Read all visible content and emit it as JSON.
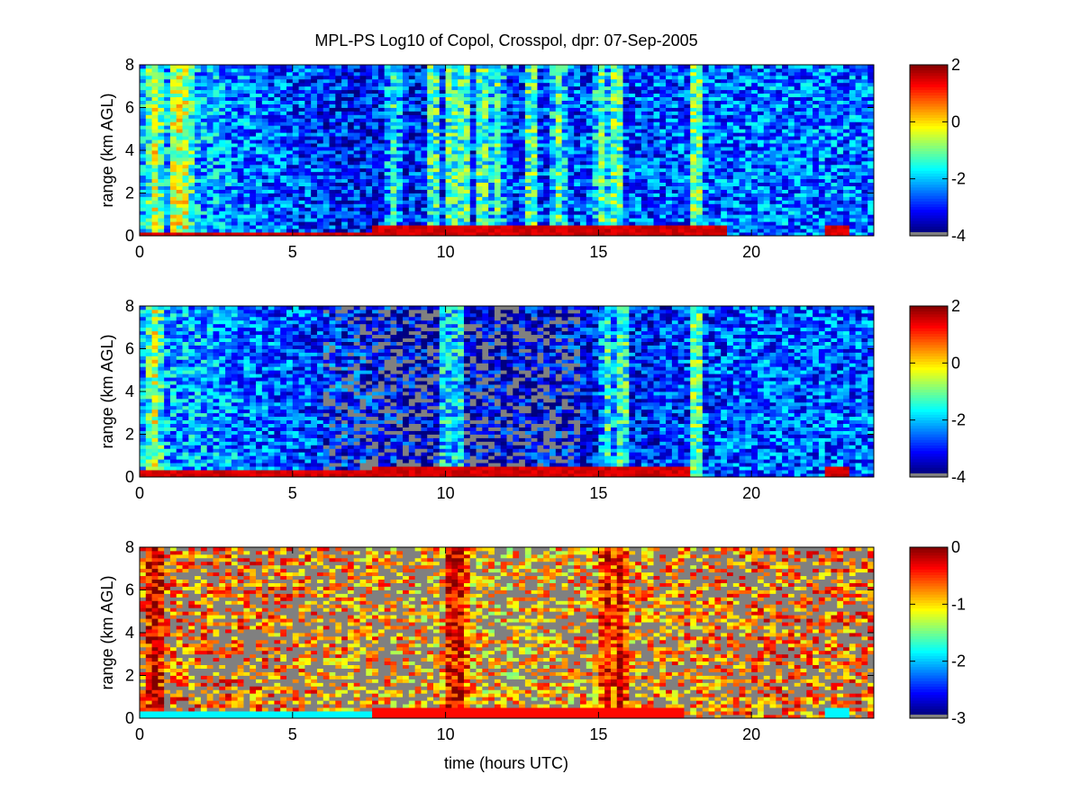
{
  "figure": {
    "title": "MPL-PS Log10 of Copol, Crosspol, dpr: 07-Sep-2005",
    "xlabel": "time (hours UTC)",
    "ylabel": "range (km AGL)",
    "xlim": [
      0,
      24
    ],
    "ylim": [
      0,
      8
    ],
    "x_ticks": [
      "0",
      "5",
      "10",
      "15",
      "20"
    ],
    "y_ticks": [
      "0",
      "2",
      "4",
      "6",
      "8"
    ],
    "missing_color": "#808080"
  },
  "chart_data": [
    {
      "type": "heatmap",
      "title": "MPL-PS Log10 of Copol, Crosspol, dpr: 07-Sep-2005",
      "ylabel": "range (km AGL)",
      "xlim": [
        0,
        24
      ],
      "ylim": [
        0,
        8
      ],
      "colorbar": {
        "ticks": [
          "2",
          "0",
          "-2",
          "-4"
        ],
        "range": [
          -4,
          2
        ],
        "colormap": "jet"
      },
      "layer_top_km": [
        {
          "from": 0,
          "to": 7.7,
          "value": 0.25
        },
        {
          "from": 7.7,
          "to": 19.3,
          "value": 0.55
        },
        {
          "from": 22.5,
          "to": 23.2,
          "value": 0.55
        }
      ],
      "background_level": [
        {
          "from": 0,
          "to": 4,
          "value": -2.2
        },
        {
          "from": 5,
          "to": 9,
          "value": -3.2
        },
        {
          "from": 17,
          "to": 24,
          "value": -2.6
        }
      ],
      "bright_columns_hours": [
        0.5,
        1.2,
        1.5,
        8.3,
        9.6,
        10.2,
        10.6,
        11.2,
        11.7,
        12.8,
        13.7,
        15.1,
        15.6,
        18.2
      ]
    },
    {
      "type": "heatmap",
      "ylabel": "range (km AGL)",
      "xlim": [
        0,
        24
      ],
      "ylim": [
        0,
        8
      ],
      "colorbar": {
        "ticks": [
          "2",
          "0",
          "-2",
          "-4"
        ],
        "range": [
          -4,
          2
        ],
        "colormap": "jet"
      },
      "layer_top_km": [
        {
          "from": 0,
          "to": 7.7,
          "value": 0.3
        },
        {
          "from": 7.7,
          "to": 18,
          "value": 0.55
        },
        {
          "from": 22.5,
          "to": 23.2,
          "value": 0.45
        }
      ],
      "background_level": [
        {
          "from": 0,
          "to": 4,
          "value": -2.3
        },
        {
          "from": 6,
          "to": 14,
          "value": -3.6
        },
        {
          "from": 17,
          "to": 24,
          "value": -2.7
        }
      ],
      "bright_columns_hours": [
        0.5,
        10.0,
        10.4,
        15.3,
        15.8,
        18.2
      ]
    },
    {
      "type": "heatmap",
      "ylabel": "range (km AGL)",
      "xlabel": "time (hours UTC)",
      "xlim": [
        0,
        24
      ],
      "ylim": [
        0,
        8
      ],
      "colorbar": {
        "ticks": [
          "0",
          "-1",
          "-2",
          "-3"
        ],
        "range": [
          -3,
          0
        ],
        "colormap": "jet"
      },
      "layer_top_km": [
        {
          "from": 0,
          "to": 7.7,
          "value": 0.35
        },
        {
          "from": 7.7,
          "to": 17.8,
          "value": 0.55
        },
        {
          "from": 22.5,
          "to": 23.2,
          "value": 0.5
        }
      ],
      "background_level": [
        {
          "from": 0,
          "to": 7,
          "value": -0.7
        },
        {
          "from": 8,
          "to": 16,
          "value": -1.0
        },
        {
          "from": 17,
          "to": 24,
          "value": -0.7
        }
      ],
      "bright_columns_hours": [
        0.5,
        10.2,
        10.5,
        15.3,
        15.7
      ]
    }
  ]
}
